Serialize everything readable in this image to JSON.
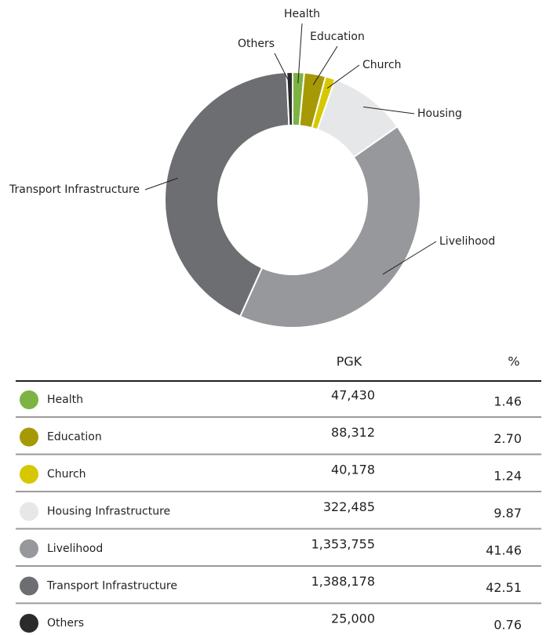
{
  "chart_data": {
    "type": "donut",
    "categories": [
      "Health",
      "Education",
      "Church",
      "Housing",
      "Livelihood",
      "Transport Infrastructure",
      "Others"
    ],
    "values": [
      1.46,
      2.7,
      1.24,
      9.87,
      41.46,
      42.51,
      0.76
    ],
    "value_labels": [
      "1.46",
      "2.70",
      "1.24",
      "9.87",
      "41.46",
      "42.51",
      "0.76"
    ],
    "colors": [
      "#7cb342",
      "#a59a05",
      "#d6c800",
      "#e6e7e8",
      "#97989b",
      "#6d6e71",
      "#2b2b2d"
    ]
  },
  "table": {
    "columns": [
      "PGK",
      "%"
    ],
    "rows": [
      {
        "label": "Health",
        "pgk": "47,430"
      },
      {
        "label": "Education",
        "pgk": "88,312"
      },
      {
        "label": "Church",
        "pgk": "40,178"
      },
      {
        "label": "Housing Infrastructure",
        "pgk": "322,485"
      },
      {
        "label": "Livelihood",
        "pgk": "1,353,755"
      },
      {
        "label": "Transport Infrastructure",
        "pgk": "1,388,178"
      },
      {
        "label": "Others",
        "pgk": "25,000"
      }
    ]
  }
}
